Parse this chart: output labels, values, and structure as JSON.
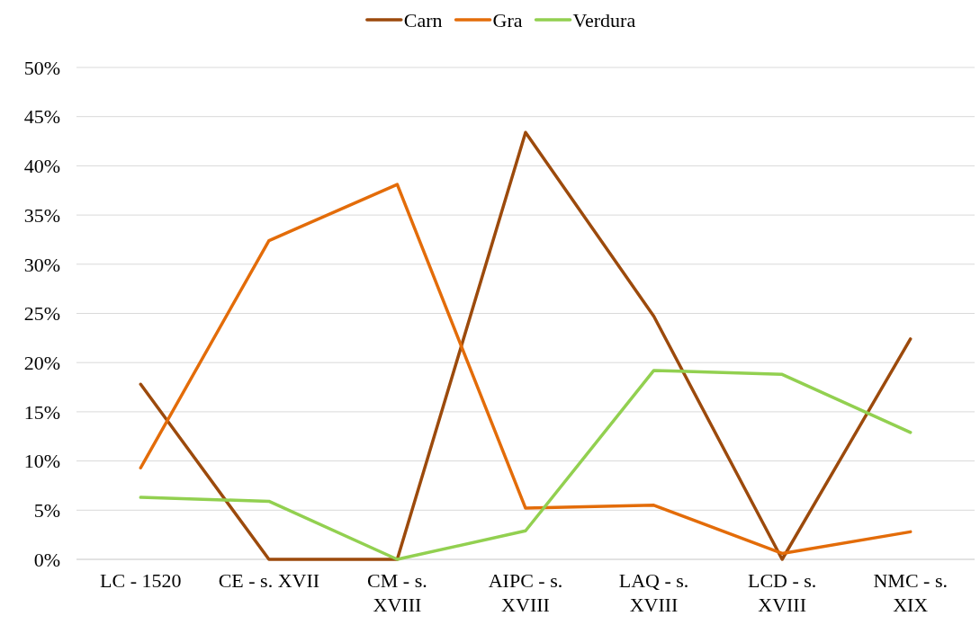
{
  "chart_data": {
    "type": "line",
    "categories": [
      "LC - 1520",
      "CE - s. XVII",
      "CM - s. XVIII",
      "AIPC - s. XVIII",
      "LAQ - s. XVIII",
      "LCD - s. XVIII",
      "NMC - s. XIX"
    ],
    "series": [
      {
        "name": "Carn",
        "color": "#9c4a0c",
        "values": [
          17.8,
          0,
          0,
          43.4,
          24.7,
          0,
          22.4
        ]
      },
      {
        "name": "Gra",
        "color": "#e36c09",
        "values": [
          9.3,
          32.4,
          38.1,
          5.2,
          5.5,
          0.6,
          2.8
        ]
      },
      {
        "name": "Verdura",
        "color": "#92d050",
        "values": [
          6.3,
          5.9,
          0,
          2.9,
          19.2,
          18.8,
          12.9
        ]
      }
    ],
    "ylim": [
      0,
      50
    ],
    "yticks": [
      {
        "value": 0,
        "label": "0%"
      },
      {
        "value": 5,
        "label": "5%"
      },
      {
        "value": 10,
        "label": "10%"
      },
      {
        "value": 15,
        "label": "15%"
      },
      {
        "value": 20,
        "label": "20%"
      },
      {
        "value": 25,
        "label": "25%"
      },
      {
        "value": 30,
        "label": "30%"
      },
      {
        "value": 35,
        "label": "35%"
      },
      {
        "value": 40,
        "label": "40%"
      },
      {
        "value": 45,
        "label": "45%"
      },
      {
        "value": 50,
        "label": "50%"
      }
    ],
    "grid": "y",
    "legend": "top",
    "marker": "none",
    "line_style": "solid"
  }
}
